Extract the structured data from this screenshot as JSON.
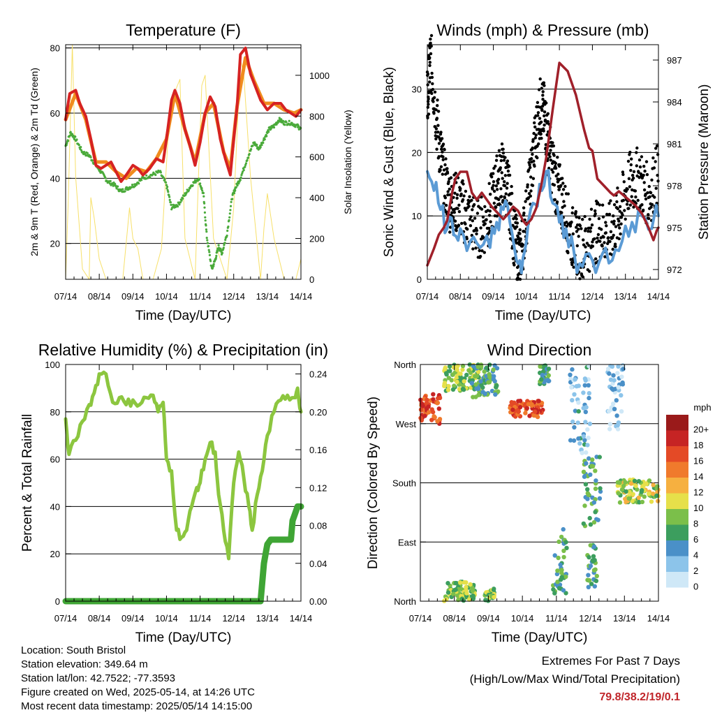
{
  "chart_data": [
    {
      "type": "line",
      "title": "Temperature (F)",
      "xlabel": "Time (Day/UTC)",
      "ylabel": "2m & 9m T (Red, Orange) & 2m Td (Green)",
      "y2label": "Solar Insolation (Yellow)",
      "x_ticks": [
        "07/14",
        "08/14",
        "09/14",
        "10/14",
        "11/14",
        "12/14",
        "13/14",
        "14/14"
      ],
      "ylim": [
        9,
        81
      ],
      "y_ticks": [
        20,
        40,
        60,
        80
      ],
      "y2lim": [
        0,
        1150
      ],
      "y2_ticks": [
        0,
        200,
        400,
        600,
        800,
        1000
      ],
      "grid_y": true,
      "series": [
        {
          "name": "2m T",
          "color": "#d62222",
          "x": [
            0,
            0.12,
            0.3,
            0.42,
            0.6,
            0.75,
            0.9,
            1.05,
            1.2,
            1.35,
            1.5,
            1.65,
            1.8,
            2.0,
            2.15,
            2.3,
            2.5,
            2.7,
            2.9,
            3.0,
            3.15,
            3.25,
            3.4,
            3.55,
            3.7,
            3.85,
            4.0,
            4.15,
            4.3,
            4.45,
            4.6,
            4.75,
            4.9,
            5.0,
            5.1,
            5.2,
            5.35,
            5.5,
            5.65,
            5.8,
            6.0,
            6.2,
            6.4,
            6.55,
            6.7,
            6.85,
            7.0
          ],
          "values": [
            58,
            66,
            67,
            63,
            59,
            52,
            44,
            43,
            44,
            45,
            42,
            39,
            41,
            44,
            43,
            41,
            43,
            46,
            45,
            52,
            64,
            67,
            63,
            55,
            50,
            44,
            51,
            60,
            65,
            62,
            52,
            46,
            41,
            52,
            62,
            78,
            80,
            72,
            68,
            64,
            61,
            63,
            63,
            61,
            60,
            59,
            61
          ]
        },
        {
          "name": "9m T",
          "color": "#f08c1e",
          "x": [
            0,
            0.3,
            0.6,
            0.9,
            1.2,
            1.5,
            1.8,
            2.1,
            2.4,
            2.7,
            3.0,
            3.25,
            3.55,
            3.85,
            4.15,
            4.4,
            4.7,
            4.9,
            5.1,
            5.35,
            5.6,
            5.9,
            6.2,
            6.5,
            6.8,
            7.0
          ],
          "values": [
            58,
            66,
            58,
            45,
            45,
            42,
            40,
            43,
            42,
            46,
            52,
            66,
            55,
            45,
            60,
            63,
            48,
            43,
            62,
            77,
            70,
            63,
            63,
            61,
            60,
            61
          ]
        },
        {
          "name": "2m Td",
          "color": "#4aaa3a",
          "x": [
            0,
            0.15,
            0.3,
            0.5,
            0.7,
            0.9,
            1.05,
            1.25,
            1.45,
            1.65,
            1.85,
            2.05,
            2.3,
            2.55,
            2.8,
            3.0,
            3.15,
            3.35,
            3.55,
            3.75,
            3.95,
            4.1,
            4.2,
            4.35,
            4.45,
            4.55,
            4.65,
            4.8,
            4.95,
            5.05,
            5.2,
            5.4,
            5.6,
            5.75,
            5.9,
            6.05,
            6.2,
            6.35,
            6.5,
            6.7,
            6.9,
            7.0
          ],
          "values": [
            50,
            54,
            52,
            48,
            47,
            44,
            42,
            39,
            38,
            36,
            37,
            38,
            40,
            41,
            42,
            38,
            31,
            32,
            35,
            38,
            40,
            35,
            22,
            12,
            15,
            19,
            17,
            23,
            34,
            37,
            40,
            46,
            51,
            49,
            52,
            55,
            56,
            58,
            57,
            57,
            56,
            55
          ]
        },
        {
          "name": "Solar Insolation",
          "axis": "y2",
          "color": "#f7e06a",
          "x": [
            0,
            0.08,
            0.2,
            0.3,
            0.5,
            0.7,
            0.75,
            0.85,
            1.0,
            1.2,
            1.7,
            1.9,
            2.0,
            2.15,
            2.3,
            2.6,
            2.85,
            3.05,
            3.2,
            3.4,
            3.55,
            3.85,
            3.95,
            4.05,
            4.15,
            4.4,
            4.8,
            5.0,
            5.2,
            5.3,
            5.5,
            5.8,
            5.9,
            6.0,
            6.2,
            6.5,
            6.85,
            7.0
          ],
          "values": [
            0,
            400,
            1150,
            500,
            50,
            0,
            400,
            300,
            100,
            0,
            0,
            350,
            200,
            150,
            0,
            0,
            150,
            700,
            900,
            980,
            200,
            0,
            500,
            950,
            1000,
            200,
            0,
            350,
            1080,
            1000,
            500,
            0,
            250,
            420,
            200,
            0,
            0,
            100
          ]
        }
      ]
    },
    {
      "type": "line",
      "title": "Winds (mph) & Pressure (mb)",
      "xlabel": "Time (Day/UTC)",
      "ylabel": "Sonic Wind & Gust (Blue, Black)",
      "y2label": "Station Pressure (Maroon)",
      "x_ticks": [
        "07/14",
        "08/14",
        "09/14",
        "10/14",
        "11/14",
        "12/14",
        "13/14",
        "14/14"
      ],
      "ylim": [
        0,
        37
      ],
      "y_ticks": [
        0,
        10,
        20,
        30
      ],
      "y2lim": [
        971.3,
        988.1
      ],
      "y2_ticks": [
        972,
        975,
        978,
        981,
        984,
        987
      ],
      "grid_y": true,
      "series": [
        {
          "name": "Sonic Wind",
          "color": "#5b9bd5",
          "x": [
            0,
            0.2,
            0.4,
            0.6,
            0.8,
            1.0,
            1.3,
            1.6,
            1.9,
            2.1,
            2.3,
            2.5,
            2.7,
            2.85,
            3.0,
            3.2,
            3.4,
            3.6,
            3.8,
            4.0,
            4.2,
            4.45,
            4.7,
            5.0,
            5.3,
            5.6,
            5.9,
            6.2,
            6.5,
            6.8,
            7.0
          ],
          "values": [
            17,
            14,
            11,
            8,
            7,
            8,
            6,
            5,
            5,
            9,
            11,
            9,
            3,
            1,
            6,
            12,
            15,
            17,
            12,
            9,
            8,
            4,
            2,
            3,
            4,
            3,
            6,
            9,
            10,
            8,
            10
          ]
        },
        {
          "name": "Gust",
          "color": "#000000",
          "x": [
            0,
            0.1,
            0.3,
            0.5,
            0.7,
            0.9,
            1.2,
            1.5,
            1.8,
            2.05,
            2.25,
            2.45,
            2.65,
            2.8,
            3.0,
            3.2,
            3.4,
            3.55,
            3.7,
            3.9,
            4.1,
            4.35,
            4.6,
            4.9,
            5.2,
            5.5,
            5.8,
            6.1,
            6.4,
            6.7,
            7.0
          ],
          "values": [
            28,
            35,
            24,
            16,
            12,
            12,
            10,
            8,
            9,
            14,
            17,
            14,
            6,
            3,
            10,
            19,
            27,
            26,
            20,
            15,
            12,
            7,
            5,
            6,
            8,
            7,
            10,
            15,
            16,
            13,
            17
          ]
        },
        {
          "name": "Station Pressure",
          "axis": "y2",
          "color": "#a0202a",
          "x": [
            0,
            0.2,
            0.35,
            0.5,
            0.6,
            0.75,
            0.85,
            1.0,
            1.2,
            1.35,
            1.5,
            1.65,
            1.8,
            1.95,
            2.15,
            2.3,
            2.45,
            2.6,
            2.75,
            2.9,
            3.0,
            3.15,
            3.3,
            3.45,
            3.6,
            3.8,
            4.0,
            4.25,
            4.5,
            4.75,
            4.9,
            5.0,
            5.15,
            5.35,
            5.55,
            5.65,
            5.8,
            5.95,
            6.1,
            6.3,
            6.5,
            6.7,
            6.85,
            6.95,
            7.0
          ],
          "values": [
            972.3,
            973.5,
            974.5,
            975.0,
            975.5,
            977.5,
            978.5,
            979.0,
            979.0,
            977.5,
            977.0,
            977.5,
            977.0,
            976.5,
            976.0,
            975.6,
            976.0,
            976.5,
            976.2,
            975.5,
            975.2,
            975.6,
            976.4,
            978.0,
            980.0,
            983.5,
            986.8,
            986.2,
            984.5,
            982.0,
            980.7,
            980.5,
            978.5,
            978.0,
            977.5,
            977.3,
            977.6,
            977.3,
            977.0,
            976.6,
            976.0,
            975.0,
            974.1,
            974.8,
            975.0
          ]
        }
      ]
    },
    {
      "type": "line",
      "title": "Relative Humidity (%) & Precipitation (in)",
      "xlabel": "Time (Day/UTC)",
      "ylabel": "Percent & Total Rainfall",
      "x_ticks": [
        "07/14",
        "08/14",
        "09/14",
        "10/14",
        "11/14",
        "12/14",
        "13/14",
        "14/14"
      ],
      "ylim": [
        0,
        100
      ],
      "y_ticks": [
        0,
        20,
        40,
        60,
        80,
        100
      ],
      "y2lim": [
        0,
        0.25
      ],
      "y2_ticks": [
        "0.00",
        "0.04",
        "0.08",
        "0.12",
        "0.16",
        "0.20",
        "0.24"
      ],
      "grid_y": true,
      "series": [
        {
          "name": "Relative Humidity",
          "color": "#8cc63f",
          "x": [
            0,
            0.1,
            0.3,
            0.5,
            0.7,
            0.85,
            1.0,
            1.2,
            1.4,
            1.6,
            1.8,
            2.0,
            2.2,
            2.4,
            2.6,
            2.75,
            2.9,
            3.0,
            3.15,
            3.3,
            3.45,
            3.6,
            3.75,
            3.9,
            4.0,
            4.15,
            4.3,
            4.45,
            4.55,
            4.7,
            4.85,
            5.0,
            5.15,
            5.3,
            5.45,
            5.55,
            5.7,
            5.85,
            6.0,
            6.2,
            6.4,
            6.6,
            6.8,
            6.9,
            7.0
          ],
          "values": [
            77,
            62,
            68,
            76,
            83,
            88,
            96,
            96,
            84,
            86,
            83,
            85,
            83,
            86,
            87,
            80,
            84,
            60,
            55,
            30,
            27,
            30,
            40,
            48,
            50,
            60,
            67,
            63,
            45,
            30,
            18,
            50,
            63,
            52,
            40,
            30,
            45,
            55,
            70,
            80,
            85,
            87,
            86,
            90,
            80
          ]
        },
        {
          "name": "Total Rainfall",
          "axis": "y2",
          "color": "#3fa535",
          "x": [
            0,
            5.8,
            5.9,
            5.95,
            6.0,
            6.1,
            6.7,
            6.75,
            6.8,
            6.9,
            7.0
          ],
          "values": [
            0.0,
            0.0,
            0.04,
            0.05,
            0.06,
            0.065,
            0.065,
            0.085,
            0.09,
            0.1,
            0.1
          ]
        }
      ]
    },
    {
      "type": "scatter",
      "title": "Wind Direction",
      "xlabel": "Time (Day/UTC)",
      "ylabel": "Direction (Colored By Speed)",
      "x_ticks": [
        "07/14",
        "08/14",
        "09/14",
        "10/14",
        "11/14",
        "12/14",
        "13/14",
        "14/14"
      ],
      "y_ticks": [
        "North",
        "East",
        "South",
        "West",
        "North"
      ],
      "ylim": [
        0,
        360
      ],
      "grid_y": true,
      "colorbar": {
        "title": "mph",
        "labels": [
          "0",
          "2",
          "4",
          "6",
          "8",
          "10",
          "12",
          "14",
          "16",
          "18",
          "20+"
        ],
        "colors": [
          "#cfe8f7",
          "#8cc4ea",
          "#4a90c8",
          "#3c9e5e",
          "#7bbf4a",
          "#e6e04a",
          "#f6b040",
          "#f07a2c",
          "#e44a26",
          "#c62424",
          "#9a1a1a"
        ]
      },
      "clusters": [
        {
          "x_range": [
            0.0,
            0.6
          ],
          "dir_range": [
            270,
            315
          ],
          "speed": 16
        },
        {
          "x_range": [
            0.7,
            1.8
          ],
          "dir_range": [
            320,
            360
          ],
          "speed": 8
        },
        {
          "x_range": [
            0.7,
            1.6
          ],
          "dir_range": [
            0,
            30
          ],
          "speed": 8
        },
        {
          "x_range": [
            1.5,
            2.3
          ],
          "dir_range": [
            310,
            360
          ],
          "speed": 6
        },
        {
          "x_range": [
            1.9,
            2.2
          ],
          "dir_range": [
            0,
            20
          ],
          "speed": 8
        },
        {
          "x_range": [
            2.6,
            3.6
          ],
          "dir_range": [
            280,
            305
          ],
          "speed": 16
        },
        {
          "x_range": [
            3.5,
            3.8
          ],
          "dir_range": [
            330,
            360
          ],
          "speed": 6
        },
        {
          "x_range": [
            3.9,
            4.3
          ],
          "dir_range": [
            10,
            110
          ],
          "speed": 6
        },
        {
          "x_range": [
            4.4,
            5.0
          ],
          "dir_range": [
            220,
            360
          ],
          "speed": 3
        },
        {
          "x_range": [
            4.8,
            5.3
          ],
          "dir_range": [
            110,
            220
          ],
          "speed": 6
        },
        {
          "x_range": [
            4.9,
            5.2
          ],
          "dir_range": [
            20,
            90
          ],
          "speed": 6
        },
        {
          "x_range": [
            5.5,
            6.0
          ],
          "dir_range": [
            260,
            360
          ],
          "speed": 2
        },
        {
          "x_range": [
            5.8,
            7.0
          ],
          "dir_range": [
            150,
            185
          ],
          "speed": 9
        }
      ]
    }
  ],
  "station_info": {
    "location": "Location: South Bristol",
    "elevation": "Station elevation: 349.64 m",
    "latlon": "Station lat/lon: 42.7522; -77.3593",
    "created": "Figure created on Wed, 2025-05-14, at 14:26 UTC",
    "recent": "Most recent data timestamp: 2025/05/14 14:15:00"
  },
  "extremes": {
    "title": "Extremes For Past 7 Days",
    "subtitle": "(High/Low/Max Wind/Total Precipitation)",
    "value": "79.8/38.2/19/0.1"
  }
}
